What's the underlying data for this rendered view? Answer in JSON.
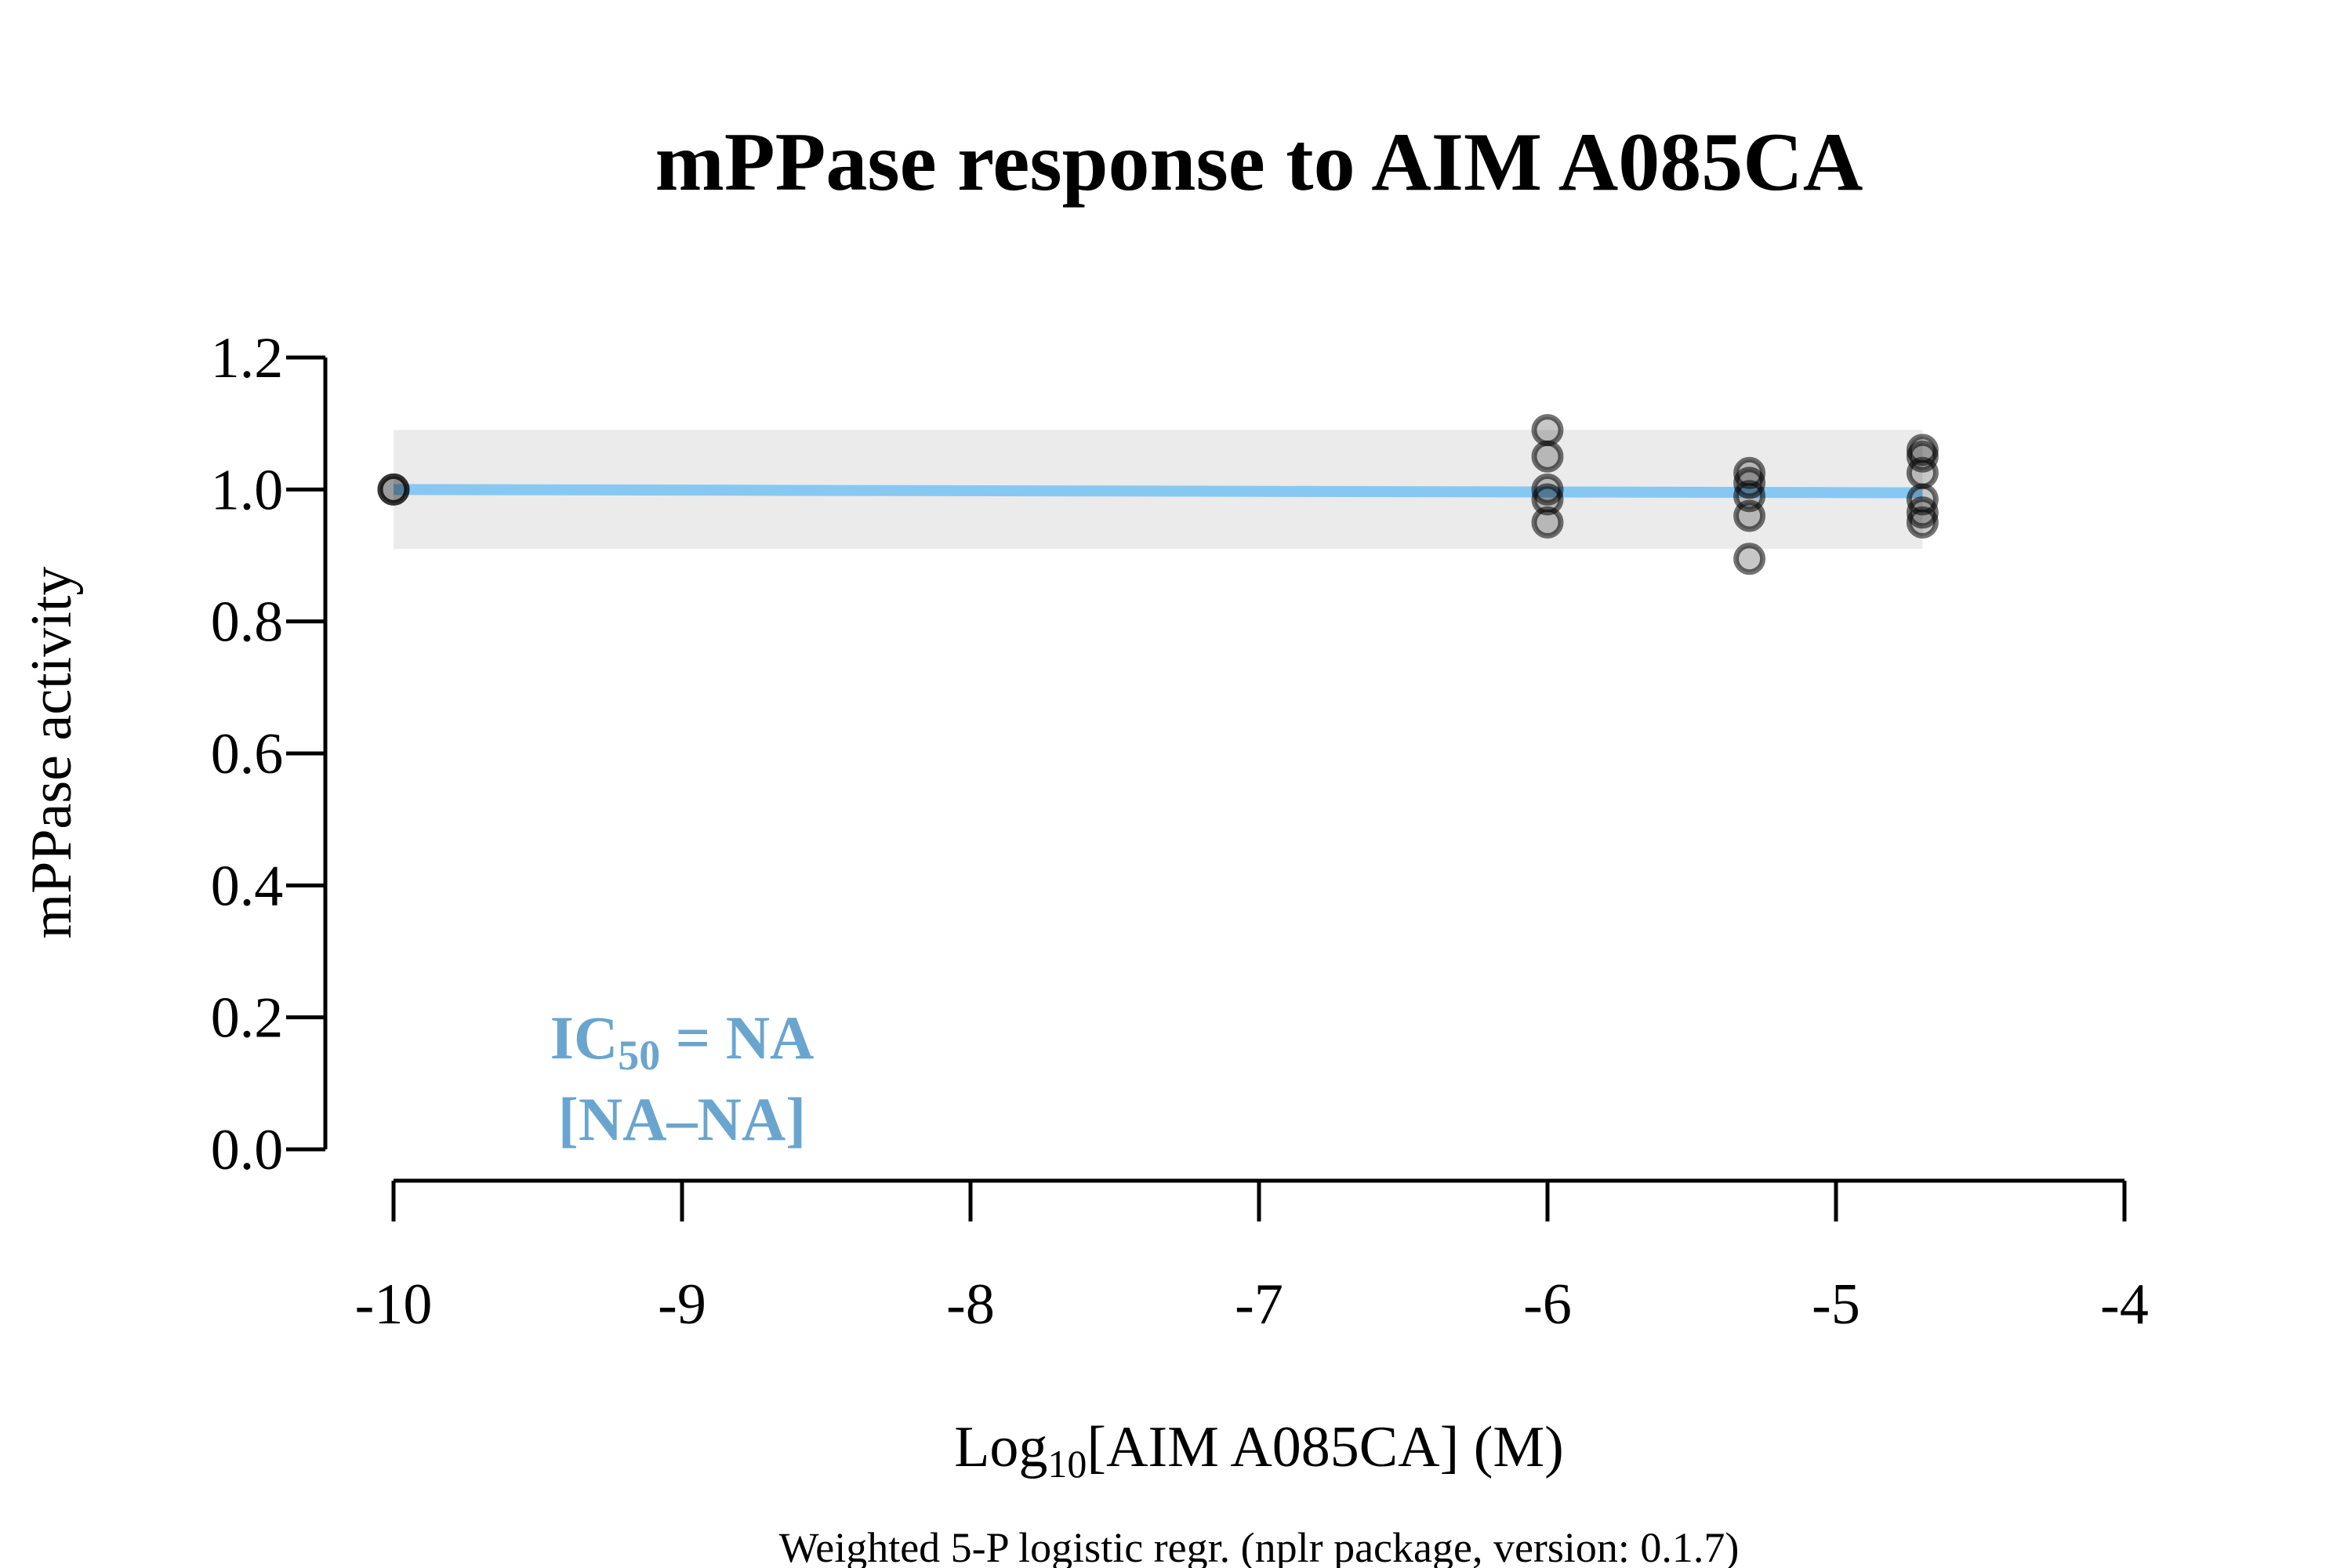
{
  "chart_data": {
    "type": "scatter",
    "title": "mPPase response to AIM A085CA",
    "ylabel": "mPPase activity",
    "xlabel_prefix": "Log",
    "xlabel_sub": "10",
    "xlabel_rest": "[AIM A085CA] (M)",
    "footnote": "Weighted 5-P logistic regr. (nplr package, version: 0.1.7)",
    "annotation": {
      "line1_prefix": "IC",
      "line1_sub": "50",
      "line1_rest": " = NA",
      "line2": "[NA–NA]",
      "color": "#6aa5cf"
    },
    "xlim": [
      -10,
      -4
    ],
    "ylim": [
      0,
      1.2
    ],
    "xticks": [
      "-10",
      "-9",
      "-8",
      "-7",
      "-6",
      "-5",
      "-4"
    ],
    "yticks": [
      "0.0",
      "0.2",
      "0.4",
      "0.6",
      "0.8",
      "1.0",
      "1.2"
    ],
    "points": [
      {
        "x": -10,
        "y": 1.0
      },
      {
        "x": -10,
        "y": 1.0
      },
      {
        "x": -6,
        "y": 1.09
      },
      {
        "x": -6,
        "y": 1.05
      },
      {
        "x": -6,
        "y": 1.0
      },
      {
        "x": -6,
        "y": 0.985
      },
      {
        "x": -6,
        "y": 0.95
      },
      {
        "x": -5.3,
        "y": 1.025
      },
      {
        "x": -5.3,
        "y": 1.01
      },
      {
        "x": -5.3,
        "y": 0.99
      },
      {
        "x": -5.3,
        "y": 0.96
      },
      {
        "x": -5.3,
        "y": 0.895
      },
      {
        "x": -4.7,
        "y": 1.06
      },
      {
        "x": -4.7,
        "y": 1.05
      },
      {
        "x": -4.7,
        "y": 1.025
      },
      {
        "x": -4.7,
        "y": 0.985
      },
      {
        "x": -4.7,
        "y": 0.965
      },
      {
        "x": -4.7,
        "y": 0.95
      }
    ],
    "fit": {
      "x": [
        -10,
        -4.7
      ],
      "y": [
        1.0,
        0.995
      ],
      "color": "#87c8f2"
    },
    "band": {
      "x": [
        -10,
        -4.7
      ],
      "ymin": 0.91,
      "ymax": 1.09,
      "color": "#ebebeb"
    },
    "point_color": "#000000"
  }
}
